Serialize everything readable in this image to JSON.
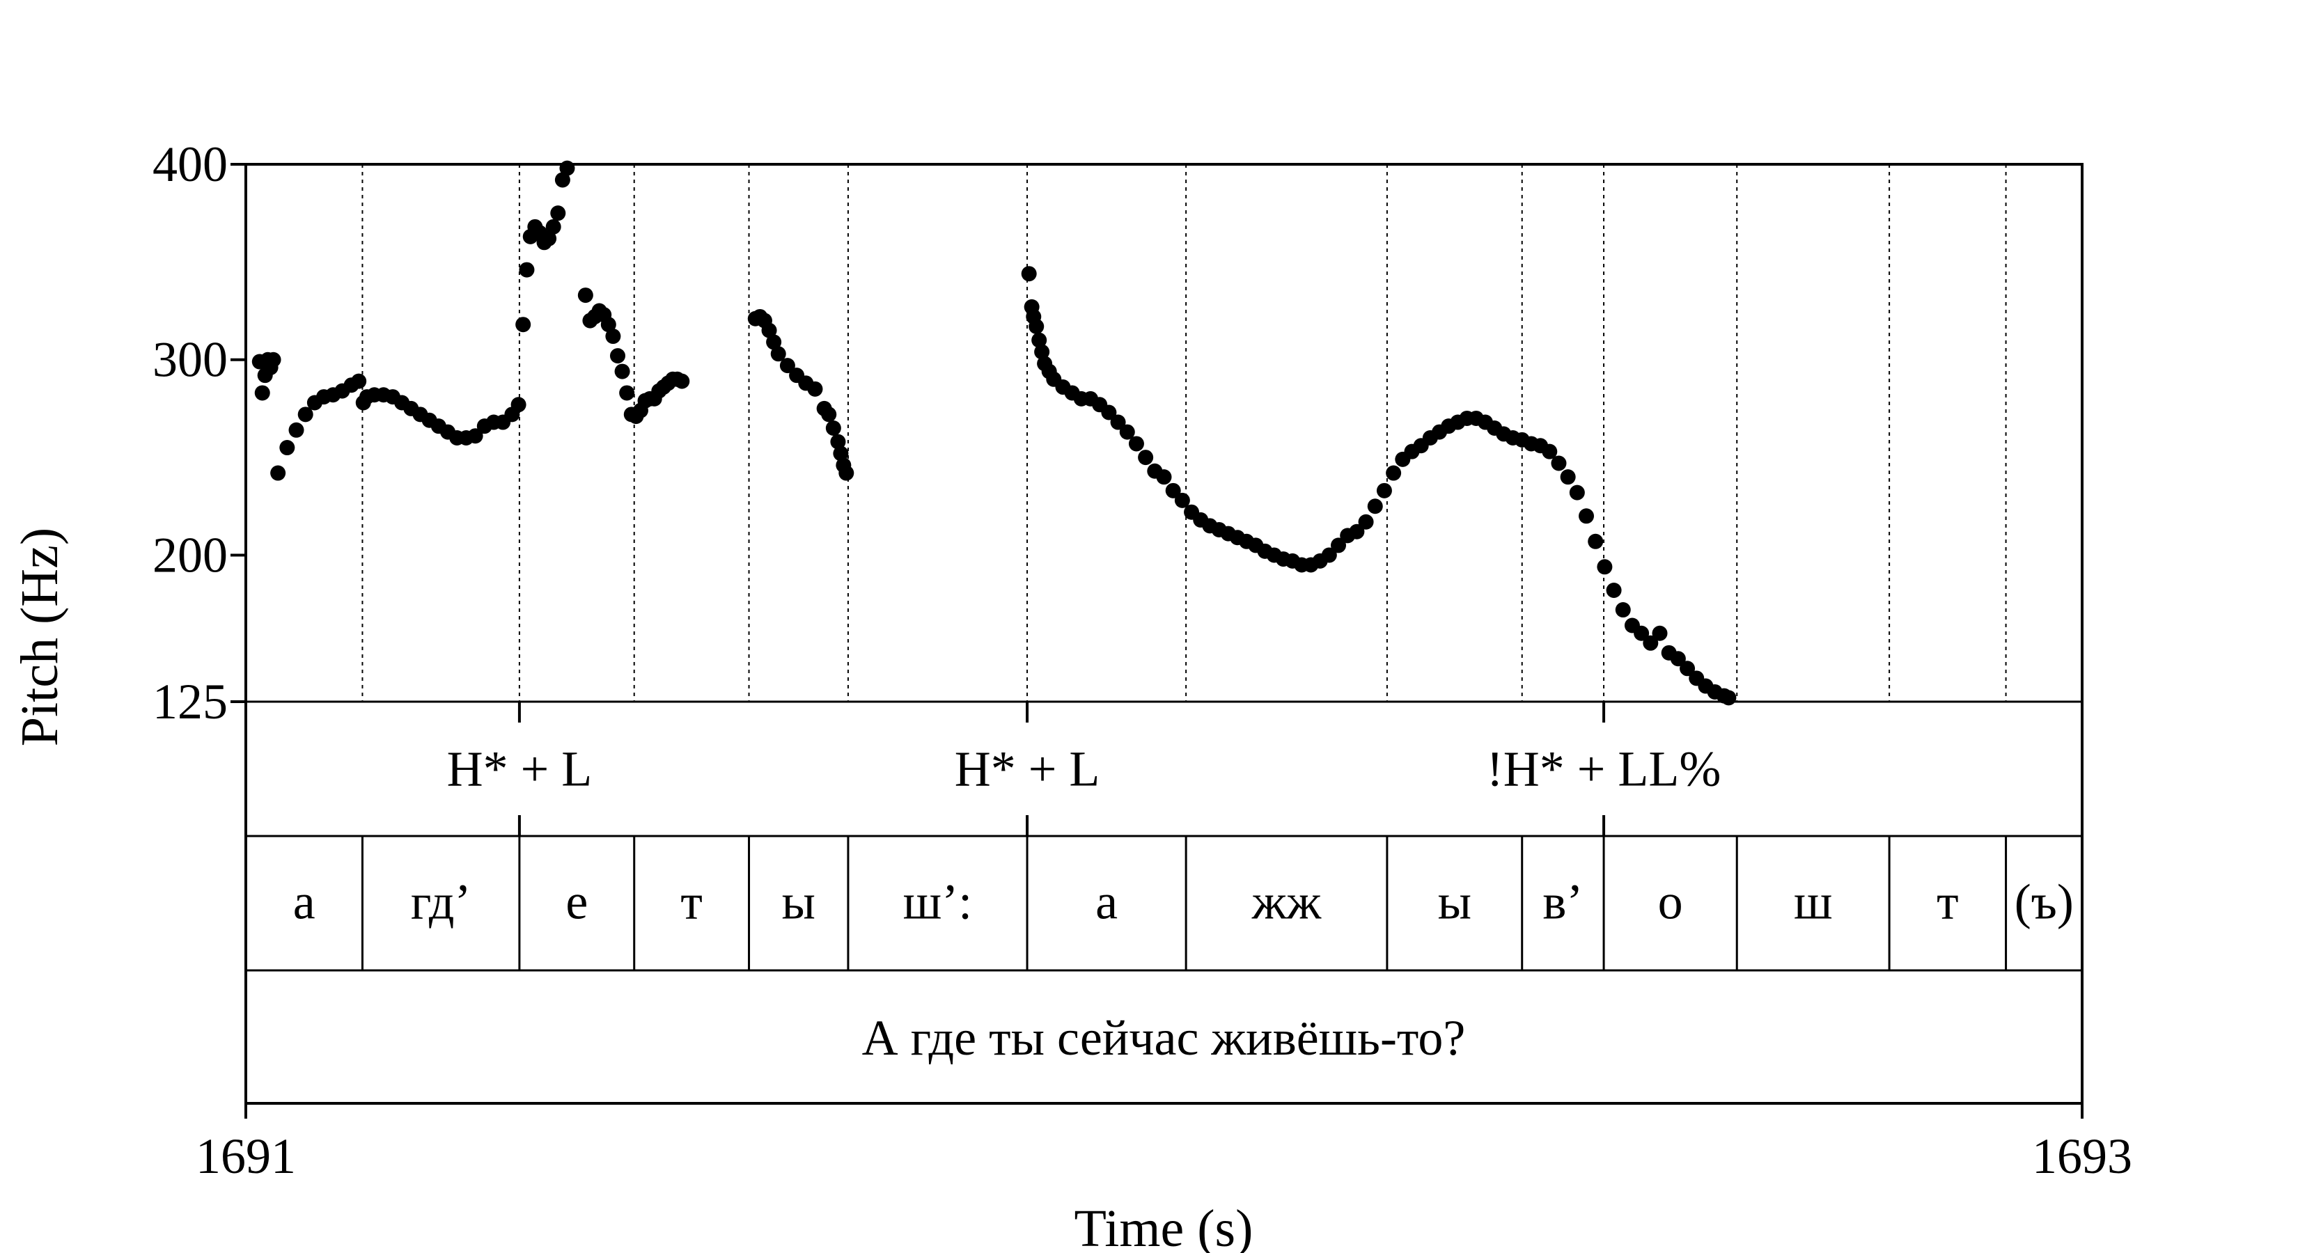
{
  "chart_data": {
    "type": "scatter",
    "xlabel": "Time (s)",
    "ylabel": "Pitch (Hz)",
    "xlim": [
      1691,
      1693
    ],
    "ylim": [
      125,
      400
    ],
    "x_tick_labels": [
      "1691",
      "1693"
    ],
    "y_tick_labels": [
      "125",
      "200",
      "300",
      "400"
    ],
    "y_ticks": [
      125,
      200,
      300,
      400
    ],
    "colors": {
      "points": "#000000",
      "lines": "#000000"
    },
    "boundaries": [
      1691.127,
      1691.298,
      1691.423,
      1691.548,
      1691.656,
      1691.851,
      1692.024,
      1692.243,
      1692.39,
      1692.479,
      1692.624,
      1692.79,
      1692.917
    ],
    "tones": [
      {
        "label": "H* + L",
        "time": 1691.298
      },
      {
        "label": "H* + L",
        "time": 1691.851
      },
      {
        "label": "!H* + LL%",
        "time": 1692.479
      }
    ],
    "segments": [
      {
        "label": "а",
        "start": 1691.0,
        "end": 1691.127
      },
      {
        "label": "гд’",
        "start": 1691.127,
        "end": 1691.298
      },
      {
        "label": "е",
        "start": 1691.298,
        "end": 1691.423
      },
      {
        "label": "т",
        "start": 1691.423,
        "end": 1691.548
      },
      {
        "label": "ы",
        "start": 1691.548,
        "end": 1691.656
      },
      {
        "label": "ш’:",
        "start": 1691.656,
        "end": 1691.851
      },
      {
        "label": "а",
        "start": 1691.851,
        "end": 1692.024
      },
      {
        "label": "жж",
        "start": 1692.024,
        "end": 1692.243
      },
      {
        "label": "ы",
        "start": 1692.243,
        "end": 1692.39
      },
      {
        "label": "в’",
        "start": 1692.39,
        "end": 1692.479
      },
      {
        "label": "о",
        "start": 1692.479,
        "end": 1692.624
      },
      {
        "label": "ш",
        "start": 1692.624,
        "end": 1692.79
      },
      {
        "label": "т",
        "start": 1692.79,
        "end": 1692.917
      },
      {
        "label": "(ъ)",
        "start": 1692.917,
        "end": 1693.0
      }
    ],
    "sentence": "А где ты сейчас живёшь-то?",
    "series": [
      {
        "x": [
          1691.015,
          1691.018,
          1691.021,
          1691.024,
          1691.027,
          1691.03
        ],
        "y": [
          299,
          283,
          292,
          300,
          296,
          300
        ]
      },
      {
        "x": [
          1691.035,
          1691.045,
          1691.055,
          1691.065,
          1691.075,
          1691.085,
          1691.095,
          1691.105,
          1691.115,
          1691.123,
          1691.128,
          1691.132,
          1691.14,
          1691.15,
          1691.16,
          1691.17,
          1691.18,
          1691.19,
          1691.2,
          1691.21,
          1691.22,
          1691.23,
          1691.24,
          1691.25,
          1691.26,
          1691.27,
          1691.28,
          1691.29,
          1691.297
        ],
        "y": [
          242,
          255,
          264,
          272,
          278,
          281,
          282,
          284,
          287,
          289,
          278,
          281,
          282,
          282,
          281,
          278,
          275,
          272,
          269,
          266,
          263,
          260,
          260,
          261,
          266,
          268,
          268,
          272,
          277
        ]
      },
      {
        "x": [
          1691.302,
          1691.306,
          1691.31,
          1691.315,
          1691.32,
          1691.325,
          1691.33,
          1691.335,
          1691.34,
          1691.345,
          1691.35
        ],
        "y": [
          318,
          346,
          363,
          368,
          365,
          360,
          362,
          368,
          375,
          392,
          398
        ]
      },
      {
        "x": [
          1691.37,
          1691.375,
          1691.38,
          1691.385,
          1691.39,
          1691.395,
          1691.4,
          1691.405,
          1691.41,
          1691.415,
          1691.42,
          1691.425,
          1691.43,
          1691.435,
          1691.44,
          1691.445,
          1691.45,
          1691.455,
          1691.46,
          1691.465,
          1691.47,
          1691.475
        ],
        "y": [
          333,
          320,
          322,
          325,
          323,
          318,
          312,
          302,
          294,
          283,
          272,
          271,
          274,
          279,
          280,
          280,
          284,
          286,
          288,
          290,
          290,
          289
        ]
      },
      {
        "x": [
          1691.555,
          1691.56,
          1691.565,
          1691.57,
          1691.575,
          1691.58,
          1691.59,
          1691.6,
          1691.61,
          1691.62,
          1691.63,
          1691.635,
          1691.64,
          1691.645,
          1691.648,
          1691.651,
          1691.654
        ],
        "y": [
          321,
          322,
          320,
          315,
          309,
          303,
          297,
          292,
          288,
          285,
          275,
          272,
          265,
          258,
          252,
          246,
          242
        ]
      },
      {
        "x": [
          1691.853,
          1691.856,
          1691.858,
          1691.861,
          1691.864,
          1691.867,
          1691.87,
          1691.875,
          1691.88,
          1691.89,
          1691.9,
          1691.91,
          1691.92,
          1691.93,
          1691.94,
          1691.95,
          1691.96,
          1691.97,
          1691.98,
          1691.99,
          1692.0,
          1692.01,
          1692.02,
          1692.03,
          1692.04,
          1692.05,
          1692.06,
          1692.07,
          1692.08,
          1692.09,
          1692.1,
          1692.11,
          1692.12,
          1692.13,
          1692.14,
          1692.15,
          1692.16,
          1692.17,
          1692.18,
          1692.19,
          1692.2,
          1692.21,
          1692.22,
          1692.23,
          1692.24,
          1692.25,
          1692.26,
          1692.27,
          1692.28,
          1692.29,
          1692.3,
          1692.31,
          1692.32,
          1692.33,
          1692.34,
          1692.35,
          1692.36,
          1692.37,
          1692.38,
          1692.39,
          1692.4,
          1692.41,
          1692.42,
          1692.43,
          1692.44,
          1692.45,
          1692.46,
          1692.47,
          1692.48,
          1692.49,
          1692.5,
          1692.51,
          1692.52,
          1692.53,
          1692.54,
          1692.55,
          1692.56,
          1692.57,
          1692.58,
          1692.59,
          1692.6,
          1692.61,
          1692.615
        ],
        "y": [
          344,
          327,
          322,
          317,
          310,
          304,
          298,
          294,
          290,
          286,
          283,
          280,
          280,
          277,
          273,
          268,
          263,
          257,
          250,
          243,
          240,
          233,
          228,
          222,
          218,
          215,
          213,
          211,
          209,
          207,
          205,
          202,
          200,
          198,
          197,
          195,
          195,
          197,
          200,
          205,
          210,
          212,
          217,
          225,
          233,
          242,
          249,
          253,
          256,
          260,
          263,
          266,
          268,
          270,
          270,
          268,
          265,
          262,
          260,
          259,
          257,
          256,
          253,
          247,
          240,
          232,
          220,
          207,
          194,
          182,
          172,
          164,
          160,
          155,
          160,
          150,
          147,
          142,
          137,
          133,
          130,
          128,
          127
        ]
      }
    ]
  }
}
